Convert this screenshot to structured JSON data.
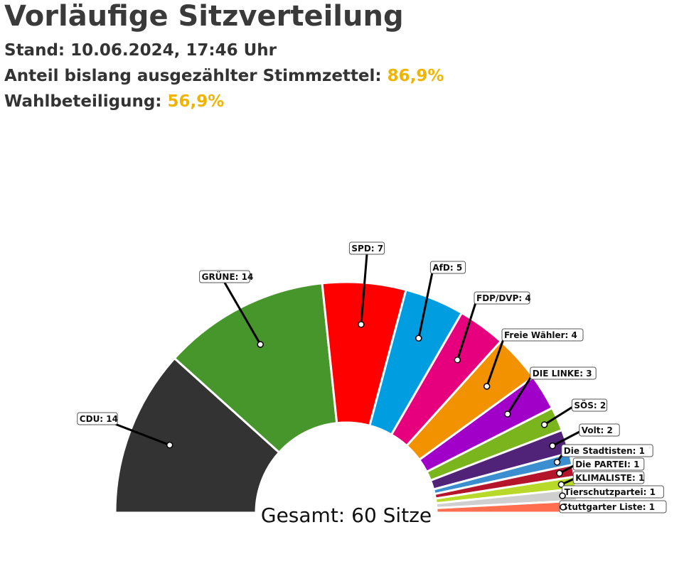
{
  "header": {
    "title": "Vorläufige Sitzverteilung",
    "stand": "Stand: 10.06.2024, 17:46 Uhr",
    "anteil_label": "Anteil bislang ausgezählter Stimmzettel:",
    "anteil_value": "86,9%",
    "wahl_label": "Wahlbeteiligung:",
    "wahl_value": "56,9%"
  },
  "chart_data": {
    "type": "pie",
    "subtype": "semicircle-parliament",
    "total_label": "Gesamt: 60 Sitze",
    "total": 60,
    "series": [
      {
        "name": "CDU",
        "label": "CDU: 14",
        "value": 14,
        "color": "#333333"
      },
      {
        "name": "GRÜNE",
        "label": "GRÜNE: 14",
        "value": 14,
        "color": "#46962b"
      },
      {
        "name": "SPD",
        "label": "SPD: 7",
        "value": 7,
        "color": "#ff0000"
      },
      {
        "name": "AfD",
        "label": "AfD: 5",
        "value": 5,
        "color": "#009ee0"
      },
      {
        "name": "FDP/DVP",
        "label": "FDP/DVP: 4",
        "value": 4,
        "color": "#e6007e"
      },
      {
        "name": "Freie Wähler",
        "label": "Freie Wähler: 4",
        "value": 4,
        "color": "#f39200"
      },
      {
        "name": "DIE LINKE",
        "label": "DIE LINKE: 3",
        "value": 3,
        "color": "#a000c8"
      },
      {
        "name": "SÖS",
        "label": "SÖS: 2",
        "value": 2,
        "color": "#7ab51d"
      },
      {
        "name": "Volt",
        "label": "Volt: 2",
        "value": 2,
        "color": "#502379"
      },
      {
        "name": "Die Stadtisten",
        "label": "Die Stadtisten: 1",
        "value": 1,
        "color": "#3b8fd0"
      },
      {
        "name": "Die PARTEI",
        "label": "Die PARTEI: 1",
        "value": 1,
        "color": "#b5152b"
      },
      {
        "name": "KLIMALISTE",
        "label": "KLIMALISTE: 1",
        "value": 1,
        "color": "#b8d82a"
      },
      {
        "name": "Tierschutzpartei",
        "label": "Tierschutzpartei: 1",
        "value": 1,
        "color": "#cfcfcf"
      },
      {
        "name": "Stuttgarter Liste",
        "label": "Stuttgarter Liste: 1",
        "value": 1,
        "color": "#ff6f4f"
      }
    ]
  }
}
